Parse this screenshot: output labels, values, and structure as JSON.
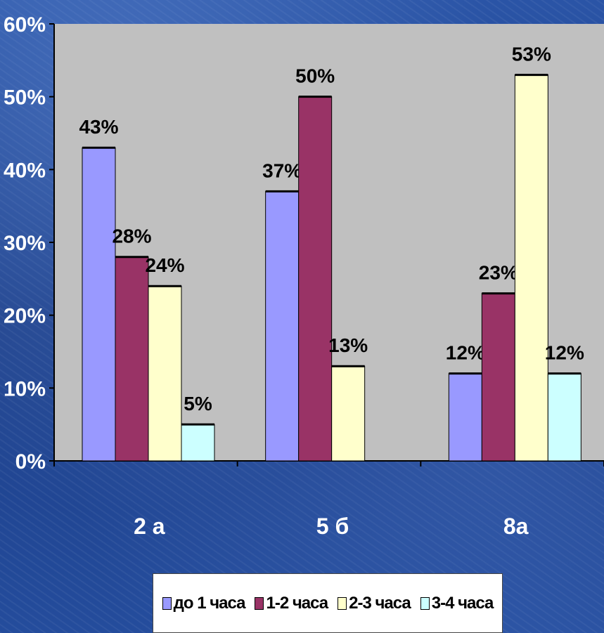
{
  "chart_data": {
    "type": "bar",
    "categories": [
      "2 а",
      "5 б",
      "8а"
    ],
    "series": [
      {
        "name": "до 1 часа",
        "color": "#9999ff",
        "values": [
          43,
          37,
          12
        ]
      },
      {
        "name": "1-2 часа",
        "color": "#993366",
        "values": [
          28,
          50,
          23
        ]
      },
      {
        "name": "2-3 часа",
        "color": "#ffffcc",
        "values": [
          24,
          13,
          53
        ]
      },
      {
        "name": "3-4 часа",
        "color": "#ccffff",
        "values": [
          5,
          null,
          12
        ]
      }
    ],
    "value_labels": [
      [
        "43%",
        "37%",
        "12%"
      ],
      [
        "28%",
        "50%",
        "23%"
      ],
      [
        "24%",
        "13%",
        "53%"
      ],
      [
        "5%",
        "",
        "12%"
      ]
    ],
    "y_ticks": [
      "0%",
      "10%",
      "20%",
      "30%",
      "40%",
      "50%",
      "60%"
    ],
    "ylim": [
      0,
      60
    ],
    "unit": "%",
    "grid": false,
    "plot_background": "#c0c0c0",
    "legend_position": "bottom",
    "title": "",
    "xlabel": "",
    "ylabel": ""
  }
}
